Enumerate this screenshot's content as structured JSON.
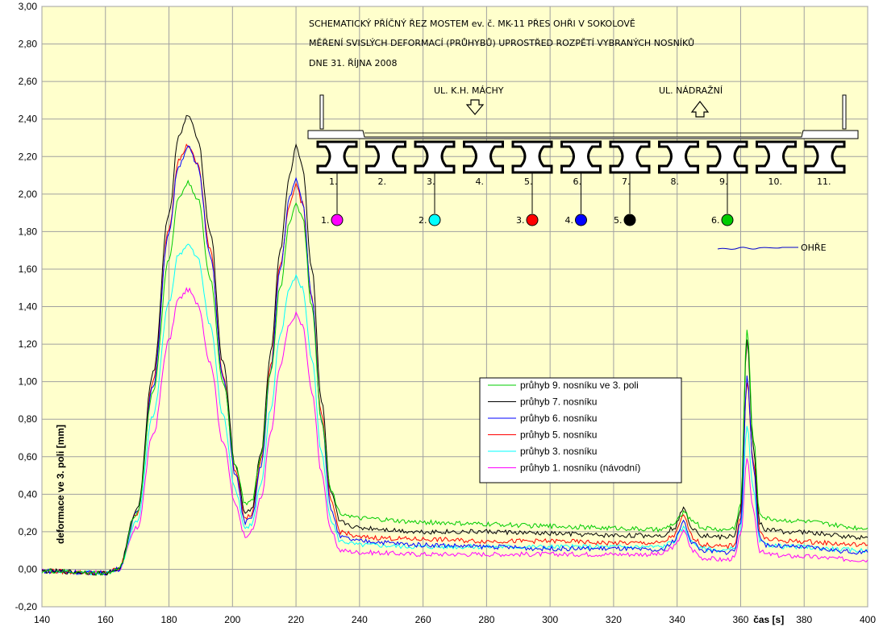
{
  "chart_data": {
    "type": "line",
    "title_lines": [
      "SCHEMATICKÝ PŘÍČNÝ ŘEZ MOSTEM ev. č. MK-11 PŘES OHŘI V SOKOLOVĚ",
      "MĚŘENÍ SVISLÝCH DEFORMACÍ (PRŮHYBŮ) UPROSTŘED ROZPĚTÍ VYBRANÝCH NOSNÍKŮ",
      "DNE 31. ŘÍJNA 2008"
    ],
    "xlabel": "čas [s]",
    "ylabel": "deformace ve 3. poli  [mm]",
    "xlim": [
      140,
      400
    ],
    "ylim": [
      -0.2,
      3.0
    ],
    "x_ticks": [
      140,
      160,
      180,
      200,
      220,
      240,
      260,
      280,
      300,
      320,
      340,
      360,
      380,
      400
    ],
    "y_ticks": [
      -0.2,
      0,
      0.2,
      0.4,
      0.6,
      0.8,
      1.0,
      1.2,
      1.4,
      1.6,
      1.8,
      2.0,
      2.2,
      2.4,
      2.6,
      2.8,
      3.0
    ],
    "grid": true,
    "legend_position": "center-right",
    "x": [
      140,
      160,
      164,
      170,
      175,
      180,
      183,
      186,
      189,
      193,
      197,
      201,
      204,
      206,
      209,
      212,
      215,
      218,
      220,
      222,
      225,
      228,
      231,
      234,
      240,
      260,
      280,
      300,
      320,
      335,
      339,
      342,
      345,
      348,
      355,
      358,
      360,
      362,
      364,
      366,
      368,
      375,
      400
    ],
    "series": [
      {
        "name": "průhyb 9. nosníku ve 3. poli",
        "color": "#00cc00",
        "values": [
          -0.01,
          -0.02,
          0.0,
          0.3,
          0.95,
          1.65,
          1.98,
          2.06,
          1.98,
          1.55,
          1.0,
          0.55,
          0.35,
          0.36,
          0.6,
          1.05,
          1.5,
          1.85,
          1.95,
          1.88,
          1.4,
          0.8,
          0.42,
          0.3,
          0.27,
          0.25,
          0.24,
          0.23,
          0.22,
          0.21,
          0.24,
          0.3,
          0.26,
          0.22,
          0.21,
          0.22,
          0.35,
          1.28,
          0.7,
          0.3,
          0.27,
          0.26,
          0.22
        ]
      },
      {
        "name": "průhyb 7. nosníku",
        "color": "#000000",
        "values": [
          -0.01,
          -0.02,
          0.0,
          0.32,
          1.05,
          1.9,
          2.3,
          2.42,
          2.3,
          1.8,
          1.1,
          0.55,
          0.3,
          0.32,
          0.62,
          1.15,
          1.7,
          2.1,
          2.26,
          2.15,
          1.6,
          0.9,
          0.4,
          0.25,
          0.22,
          0.2,
          0.2,
          0.19,
          0.18,
          0.18,
          0.22,
          0.32,
          0.22,
          0.18,
          0.17,
          0.18,
          0.32,
          1.22,
          0.65,
          0.25,
          0.21,
          0.2,
          0.17
        ]
      },
      {
        "name": "průhyb 6. nosníku",
        "color": "#0000ff",
        "values": [
          -0.01,
          -0.02,
          0.0,
          0.3,
          0.98,
          1.8,
          2.15,
          2.25,
          2.15,
          1.68,
          1.02,
          0.5,
          0.25,
          0.27,
          0.55,
          1.05,
          1.6,
          1.98,
          2.08,
          1.96,
          1.45,
          0.8,
          0.32,
          0.17,
          0.15,
          0.13,
          0.12,
          0.11,
          0.11,
          0.1,
          0.15,
          0.25,
          0.14,
          0.1,
          0.09,
          0.1,
          0.25,
          1.02,
          0.55,
          0.17,
          0.13,
          0.12,
          0.09
        ]
      },
      {
        "name": "průhyb 5. nosníku",
        "color": "#ff0000",
        "values": [
          -0.01,
          -0.02,
          0.0,
          0.3,
          1.0,
          1.82,
          2.18,
          2.26,
          2.16,
          1.7,
          1.04,
          0.52,
          0.27,
          0.29,
          0.58,
          1.08,
          1.62,
          1.95,
          2.05,
          1.95,
          1.45,
          0.82,
          0.36,
          0.2,
          0.17,
          0.16,
          0.15,
          0.15,
          0.14,
          0.14,
          0.18,
          0.28,
          0.17,
          0.13,
          0.12,
          0.13,
          0.28,
          1.0,
          0.58,
          0.2,
          0.16,
          0.15,
          0.13
        ]
      },
      {
        "name": "průhyb 3. nosníku",
        "color": "#00ffff",
        "values": [
          -0.01,
          -0.02,
          0.0,
          0.26,
          0.82,
          1.42,
          1.68,
          1.73,
          1.66,
          1.3,
          0.82,
          0.42,
          0.22,
          0.24,
          0.45,
          0.85,
          1.25,
          1.5,
          1.56,
          1.5,
          1.12,
          0.62,
          0.26,
          0.15,
          0.13,
          0.12,
          0.12,
          0.12,
          0.12,
          0.12,
          0.15,
          0.22,
          0.14,
          0.11,
          0.1,
          0.11,
          0.22,
          0.76,
          0.42,
          0.15,
          0.13,
          0.12,
          0.1
        ]
      },
      {
        "name": "průhyb 1. nosníku (návodní)",
        "color": "#ff00ff",
        "values": [
          -0.01,
          -0.02,
          0.0,
          0.22,
          0.72,
          1.22,
          1.44,
          1.49,
          1.42,
          1.1,
          0.68,
          0.34,
          0.18,
          0.2,
          0.38,
          0.72,
          1.08,
          1.3,
          1.36,
          1.3,
          0.95,
          0.52,
          0.2,
          0.1,
          0.09,
          0.08,
          0.08,
          0.08,
          0.08,
          0.08,
          0.12,
          0.2,
          0.1,
          0.06,
          0.05,
          0.06,
          0.18,
          0.58,
          0.32,
          0.1,
          0.08,
          0.07,
          0.05
        ]
      }
    ],
    "annotations": {
      "street_left": "UL. K.H. MÁCHY",
      "street_right": "UL. NÁDRAŽNÍ",
      "river": "OHŘE",
      "beam_numbers": [
        "1.",
        "2.",
        "3.",
        "4.",
        "5.",
        "6.",
        "7.",
        "8.",
        "9.",
        "10.",
        "11."
      ],
      "sensors": [
        {
          "label": "1.",
          "color": "#ff00ff",
          "beam": 1
        },
        {
          "label": "2.",
          "color": "#00ffff",
          "beam": 3
        },
        {
          "label": "3.",
          "color": "#ff0000",
          "beam": 5
        },
        {
          "label": "4.",
          "color": "#0000ff",
          "beam": 6
        },
        {
          "label": "5.",
          "color": "#000000",
          "beam": 7
        },
        {
          "label": "6.",
          "color": "#00cc00",
          "beam": 9
        }
      ]
    }
  },
  "colors": {
    "plot_bg": "#ffffcc",
    "grid": "#a0a0a0"
  }
}
